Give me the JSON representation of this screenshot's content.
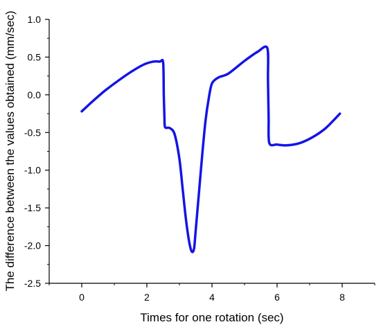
{
  "chart_data": {
    "type": "line",
    "title": "",
    "xlabel": "Times for one rotation (sec)",
    "ylabel": "The difference between the values obtained (mm/sec)",
    "xlim": [
      -1,
      9
    ],
    "ylim": [
      -2.5,
      1.0
    ],
    "xticks": [
      0,
      2,
      4,
      6,
      8
    ],
    "xtick_labels": [
      "0",
      "2",
      "4",
      "6",
      "8"
    ],
    "yticks": [
      1.0,
      0.5,
      0.0,
      -0.5,
      -1.0,
      -1.5,
      -2.0,
      -2.5
    ],
    "ytick_labels": [
      "1.0",
      "0.5",
      "0.0",
      "-0.5",
      "-1.0",
      "-1.5",
      "-2.0",
      "-2.5"
    ],
    "grid": false,
    "legend": "none",
    "line_color": "#1414e6",
    "series": [
      {
        "x": [
          0.0,
          0.3,
          0.7,
          1.1,
          1.5,
          1.9,
          2.2,
          2.4,
          2.5,
          2.52,
          2.54,
          2.56,
          2.7,
          2.85,
          3.0,
          3.1,
          3.2,
          3.3,
          3.38,
          3.45,
          3.5,
          3.6,
          3.7,
          3.8,
          3.9,
          4.0,
          4.2,
          4.5,
          5.0,
          5.4,
          5.7,
          5.72,
          5.74,
          5.76,
          6.0,
          6.3,
          6.7,
          7.1,
          7.5,
          7.93
        ],
        "y": [
          -0.22,
          -0.1,
          0.05,
          0.18,
          0.3,
          0.4,
          0.44,
          0.44,
          0.43,
          0.0,
          -0.3,
          -0.43,
          -0.44,
          -0.52,
          -0.85,
          -1.25,
          -1.65,
          -1.95,
          -2.08,
          -2.04,
          -1.8,
          -1.3,
          -0.8,
          -0.35,
          -0.05,
          0.15,
          0.23,
          0.28,
          0.45,
          0.57,
          0.62,
          0.2,
          -0.3,
          -0.64,
          -0.66,
          -0.67,
          -0.64,
          -0.56,
          -0.44,
          -0.25
        ]
      }
    ]
  }
}
